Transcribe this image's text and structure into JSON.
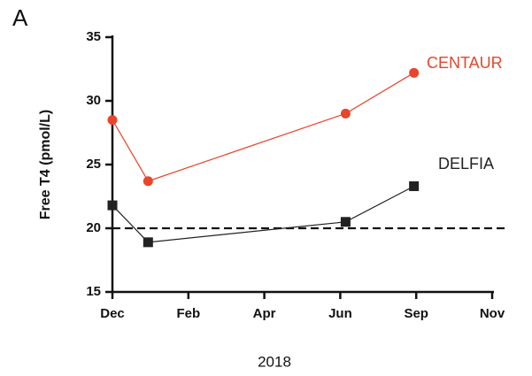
{
  "chart_data": {
    "type": "line",
    "panel_label": "A",
    "xlabel": "2018",
    "ylabel": "Free T4 (pmol/L)",
    "x": [
      0,
      0.47,
      3.07,
      3.97
    ],
    "xlim": [
      0,
      5
    ],
    "xticks": [
      {
        "value": 0,
        "label": "Dec"
      },
      {
        "value": 1,
        "label": "Feb"
      },
      {
        "value": 2,
        "label": "Apr"
      },
      {
        "value": 3,
        "label": "Jun"
      },
      {
        "value": 4,
        "label": "Sep"
      },
      {
        "value": 5,
        "label": "Nov"
      }
    ],
    "ylim": [
      15,
      35
    ],
    "yticks": [
      15,
      20,
      25,
      30,
      35
    ],
    "reference_line": 20,
    "series": [
      {
        "name": "CENTAUR",
        "color": "#e8452a",
        "marker": "circle",
        "values": [
          28.5,
          23.7,
          29.0,
          32.2
        ]
      },
      {
        "name": "DELFIA",
        "color": "#222222",
        "marker": "square",
        "values": [
          21.8,
          18.9,
          20.5,
          23.3
        ]
      }
    ]
  }
}
